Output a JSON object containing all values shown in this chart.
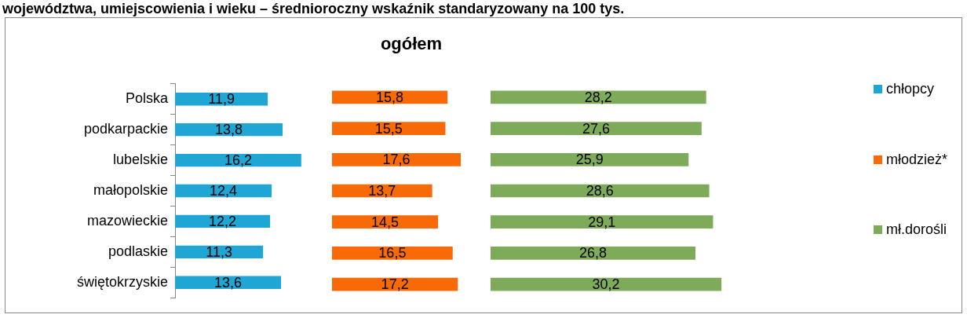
{
  "chart_data": [
    {
      "type": "bar",
      "orientation": "horizontal",
      "subtitle": "województwa, umiejscowienia i wieku – średnioroczny wskaźnik standaryzowany na 100 tys.",
      "legend": "right",
      "categories": [
        "Polska",
        "podkarpackie",
        "lubelskie",
        "małopolskie",
        "mazowieckie",
        "podlaskie",
        "świętokrzyskie"
      ],
      "series": [
        {
          "name": "chłopcy",
          "color": "#1fa6d4",
          "values": [
            11.9,
            13.8,
            16.2,
            12.4,
            12.2,
            11.3,
            13.6
          ],
          "value_labels": [
            "11,9",
            "13,8",
            "16,2",
            "12,4",
            "12,2",
            "11,3",
            "13,6"
          ]
        }
      ]
    },
    {
      "type": "bar",
      "orientation": "horizontal",
      "title": "ogółem",
      "legend": "right",
      "tick_labels": false,
      "categories": [
        null,
        null,
        null,
        null,
        null,
        null,
        null
      ],
      "series": [
        {
          "name": "młodzież*",
          "color": "#f86a08",
          "values": [
            15.8,
            15.5,
            17.6,
            13.7,
            14.5,
            16.5,
            17.2
          ],
          "value_labels": [
            "15,8",
            "15,5",
            "17,6",
            "13,7",
            "14,5",
            "16,5",
            "17,2"
          ]
        }
      ]
    },
    {
      "type": "bar",
      "orientation": "horizontal",
      "legend": "right",
      "tick_labels": false,
      "categories": [
        null,
        null,
        null,
        null,
        null,
        null,
        null
      ],
      "series": [
        {
          "name": "mł.dorośli",
          "color": "#7eab5a",
          "values": [
            28.2,
            27.6,
            25.9,
            28.6,
            29.1,
            26.8,
            30.2
          ],
          "value_labels": [
            "28,2",
            "27,6",
            "25,9",
            "28,6",
            "29,1",
            "26,8",
            "30,2"
          ]
        }
      ]
    }
  ]
}
